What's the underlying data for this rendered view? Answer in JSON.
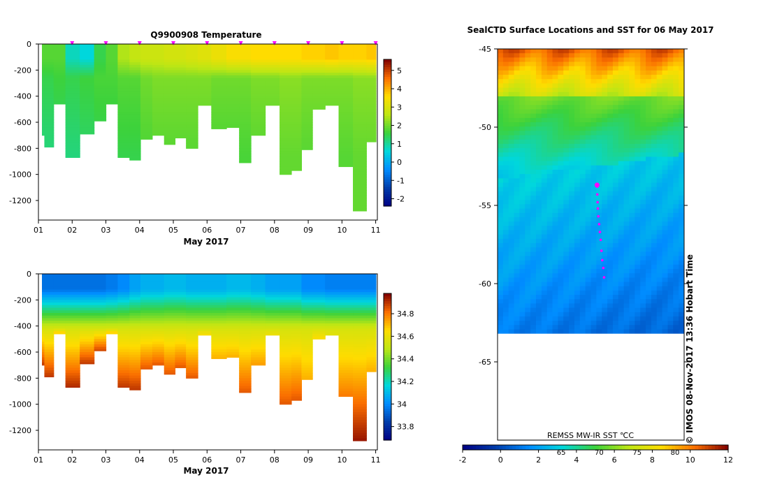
{
  "colors": {
    "seal_track": "#ff00ff",
    "axis": "#000000",
    "background": "#ffffff"
  },
  "chart_data": [
    {
      "type": "heatmap",
      "title": "Q9900908  Temperature",
      "xlabel": "May 2017",
      "x_ticks": [
        "01",
        "02",
        "03",
        "04",
        "05",
        "06",
        "07",
        "08",
        "09",
        "10",
        "11"
      ],
      "xlim": [
        1,
        11.05
      ],
      "y_ticks": [
        0,
        -200,
        -400,
        -600,
        -800,
        -1000,
        -1200
      ],
      "ylim": [
        -1350,
        0
      ],
      "colorbar": {
        "ticks": [
          -2,
          -1,
          0,
          1,
          2,
          3,
          4,
          5
        ],
        "range": [
          -2.4,
          5.6
        ]
      },
      "marker_days": [
        2.0,
        3.0,
        4.0,
        5.0,
        6.0,
        7.0,
        8.0,
        9.0,
        10.0,
        11.0
      ],
      "profiles": [
        {
          "day": 1.05,
          "depth": 700,
          "surf": 1.8,
          "bottom": 1.2
        },
        {
          "day": 1.3,
          "depth": 790,
          "surf": 1.8,
          "bottom": 1.2
        },
        {
          "day": 1.6,
          "depth": 460,
          "surf": 1.8,
          "bottom": 1.3
        },
        {
          "day": 2.0,
          "depth": 870,
          "surf": 0.8,
          "bottom": 1.2
        },
        {
          "day": 2.45,
          "depth": 690,
          "surf": 0.6,
          "bottom": 1.3
        },
        {
          "day": 2.85,
          "depth": 590,
          "surf": 1.5,
          "bottom": 1.4
        },
        {
          "day": 3.15,
          "depth": 460,
          "surf": 1.8,
          "bottom": 1.4
        },
        {
          "day": 3.55,
          "depth": 870,
          "surf": 2.5,
          "bottom": 1.5
        },
        {
          "day": 3.85,
          "depth": 890,
          "surf": 2.7,
          "bottom": 1.5
        },
        {
          "day": 4.2,
          "depth": 730,
          "surf": 2.8,
          "bottom": 1.7
        },
        {
          "day": 4.55,
          "depth": 700,
          "surf": 2.8,
          "bottom": 1.8
        },
        {
          "day": 4.9,
          "depth": 770,
          "surf": 2.9,
          "bottom": 1.8
        },
        {
          "day": 5.2,
          "depth": 720,
          "surf": 2.9,
          "bottom": 1.8
        },
        {
          "day": 5.55,
          "depth": 800,
          "surf": 3.0,
          "bottom": 1.8
        },
        {
          "day": 5.9,
          "depth": 470,
          "surf": 3.1,
          "bottom": 1.8
        },
        {
          "day": 6.35,
          "depth": 650,
          "surf": 3.3,
          "bottom": 1.7
        },
        {
          "day": 6.8,
          "depth": 640,
          "surf": 3.5,
          "bottom": 1.7
        },
        {
          "day": 7.1,
          "depth": 910,
          "surf": 3.5,
          "bottom": 1.7
        },
        {
          "day": 7.5,
          "depth": 700,
          "surf": 3.6,
          "bottom": 1.8
        },
        {
          "day": 7.95,
          "depth": 470,
          "surf": 3.6,
          "bottom": 1.8
        },
        {
          "day": 8.35,
          "depth": 1000,
          "surf": 3.6,
          "bottom": 1.9
        },
        {
          "day": 8.65,
          "depth": 970,
          "surf": 3.6,
          "bottom": 1.9
        },
        {
          "day": 8.95,
          "depth": 810,
          "surf": 3.7,
          "bottom": 1.8
        },
        {
          "day": 9.3,
          "depth": 500,
          "surf": 3.7,
          "bottom": 1.8
        },
        {
          "day": 9.7,
          "depth": 470,
          "surf": 3.8,
          "bottom": 1.8
        },
        {
          "day": 10.1,
          "depth": 940,
          "surf": 3.7,
          "bottom": 1.8
        },
        {
          "day": 10.55,
          "depth": 1280,
          "surf": 3.7,
          "bottom": 1.9
        },
        {
          "day": 10.9,
          "depth": 750,
          "surf": 3.8,
          "bottom": 1.9
        }
      ]
    },
    {
      "type": "heatmap",
      "title": "",
      "xlabel": "May 2017",
      "x_ticks": [
        "01",
        "02",
        "03",
        "04",
        "05",
        "06",
        "07",
        "08",
        "09",
        "10",
        "11"
      ],
      "xlim": [
        1,
        11.05
      ],
      "y_ticks": [
        0,
        -200,
        -400,
        -600,
        -800,
        -1000,
        -1200
      ],
      "ylim": [
        -1350,
        0
      ],
      "colorbar": {
        "ticks": [
          "33.8",
          "34",
          "34.2",
          "34.4",
          "34.6",
          "34.8"
        ],
        "range": [
          33.68,
          34.98
        ]
      },
      "profiles": [
        {
          "day": 1.05,
          "depth": 700,
          "surf": 33.95,
          "bottom": 34.9
        },
        {
          "day": 1.3,
          "depth": 790,
          "surf": 33.95,
          "bottom": 34.9
        },
        {
          "day": 1.6,
          "depth": 460,
          "surf": 33.95,
          "bottom": 34.85
        },
        {
          "day": 2.0,
          "depth": 870,
          "surf": 33.95,
          "bottom": 34.92
        },
        {
          "day": 2.45,
          "depth": 690,
          "surf": 33.95,
          "bottom": 34.9
        },
        {
          "day": 2.85,
          "depth": 590,
          "surf": 33.95,
          "bottom": 34.88
        },
        {
          "day": 3.15,
          "depth": 460,
          "surf": 33.97,
          "bottom": 34.85
        },
        {
          "day": 3.55,
          "depth": 870,
          "surf": 34.0,
          "bottom": 34.9
        },
        {
          "day": 3.85,
          "depth": 890,
          "surf": 34.05,
          "bottom": 34.9
        },
        {
          "day": 4.2,
          "depth": 730,
          "surf": 34.08,
          "bottom": 34.85
        },
        {
          "day": 4.55,
          "depth": 700,
          "surf": 34.08,
          "bottom": 34.85
        },
        {
          "day": 4.9,
          "depth": 770,
          "surf": 34.1,
          "bottom": 34.85
        },
        {
          "day": 5.2,
          "depth": 720,
          "surf": 34.1,
          "bottom": 34.85
        },
        {
          "day": 5.55,
          "depth": 800,
          "surf": 34.08,
          "bottom": 34.85
        },
        {
          "day": 5.9,
          "depth": 470,
          "surf": 34.08,
          "bottom": 34.7
        },
        {
          "day": 6.35,
          "depth": 650,
          "surf": 34.08,
          "bottom": 34.72
        },
        {
          "day": 6.8,
          "depth": 640,
          "surf": 34.1,
          "bottom": 34.72
        },
        {
          "day": 7.1,
          "depth": 910,
          "surf": 34.1,
          "bottom": 34.85
        },
        {
          "day": 7.5,
          "depth": 700,
          "surf": 34.08,
          "bottom": 34.75
        },
        {
          "day": 7.95,
          "depth": 470,
          "surf": 34.05,
          "bottom": 34.65
        },
        {
          "day": 8.35,
          "depth": 1000,
          "surf": 34.05,
          "bottom": 34.85
        },
        {
          "day": 8.65,
          "depth": 970,
          "surf": 34.05,
          "bottom": 34.85
        },
        {
          "day": 8.95,
          "depth": 810,
          "surf": 34.0,
          "bottom": 34.72
        },
        {
          "day": 9.3,
          "depth": 500,
          "surf": 34.0,
          "bottom": 34.65
        },
        {
          "day": 9.7,
          "depth": 470,
          "surf": 33.98,
          "bottom": 34.6
        },
        {
          "day": 10.1,
          "depth": 940,
          "surf": 33.98,
          "bottom": 34.8
        },
        {
          "day": 10.55,
          "depth": 1280,
          "surf": 33.98,
          "bottom": 34.95
        },
        {
          "day": 10.9,
          "depth": 750,
          "surf": 33.98,
          "bottom": 34.72
        }
      ]
    },
    {
      "type": "heatmap",
      "title": "SealCTD Surface Locations and SST for 06 May 2017",
      "y_ticks": [
        "-45",
        "-50",
        "-55",
        "-60",
        "-65"
      ],
      "ylim": [
        -70,
        -45
      ],
      "xlim": [
        -18,
        18
      ],
      "data_label": "REMSS MW-IR SST ℃C",
      "credit": "© IMOS 08-Nov-2017 13:36 Hobart Time",
      "colorbar": {
        "ticks": [
          -2,
          0,
          2,
          4,
          6,
          8,
          10,
          12
        ],
        "range": [
          -2,
          12
        ],
        "overlay_ticks": [
          "65",
          "70",
          "75",
          "80"
        ]
      },
      "ice_edge_lat": -63.2,
      "front_lat": -52.5,
      "seal_track": [
        {
          "x": 1.2,
          "y": -53.8
        },
        {
          "x": 1.25,
          "y": -54.3
        },
        {
          "x": 1.3,
          "y": -54.8
        },
        {
          "x": 1.35,
          "y": -55.2
        },
        {
          "x": 1.45,
          "y": -55.7
        },
        {
          "x": 1.6,
          "y": -56.2
        },
        {
          "x": 1.75,
          "y": -56.7
        },
        {
          "x": 1.9,
          "y": -57.2
        },
        {
          "x": 2.05,
          "y": -57.9
        },
        {
          "x": 2.2,
          "y": -58.5
        },
        {
          "x": 2.4,
          "y": -59.0
        },
        {
          "x": 2.55,
          "y": -59.6
        }
      ],
      "seal_current": {
        "x": 1.2,
        "y": -53.7
      }
    }
  ]
}
